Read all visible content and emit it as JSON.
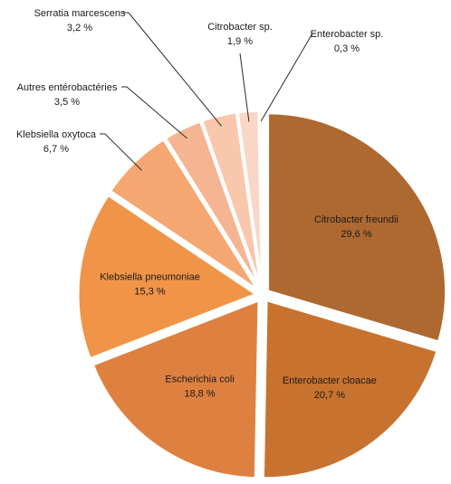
{
  "chart_data": {
    "type": "pie",
    "title": "",
    "slices": [
      {
        "name": "Citrobacter freundii",
        "value": 29.6,
        "label": "29,6 %",
        "color": "#ad6930"
      },
      {
        "name": "Enterobacter cloacae",
        "value": 20.7,
        "label": "20,7 %",
        "color": "#c8722f"
      },
      {
        "name": "Escherichia coli",
        "value": 18.8,
        "label": "18,8 %",
        "color": "#de8140"
      },
      {
        "name": "Klebsiella pneumoniae",
        "value": 15.3,
        "label": "15,3 %",
        "color": "#f09448"
      },
      {
        "name": "Klebsiella oxytoca",
        "value": 6.7,
        "label": "6,7 %",
        "color": "#f4a771"
      },
      {
        "name": "Autres entérobactéries",
        "value": 3.5,
        "label": "3,5 %",
        "color": "#f6b592"
      },
      {
        "name": "Serratia marcescens",
        "value": 3.2,
        "label": "3,2 %",
        "color": "#f8c7ac"
      },
      {
        "name": "Citrobacter sp.",
        "value": 1.9,
        "label": "1,9 %",
        "color": "#fad6c6"
      },
      {
        "name": "Enterobacter sp.",
        "value": 0.3,
        "label": "0,3 %",
        "color": "#fbe0d5"
      }
    ]
  }
}
